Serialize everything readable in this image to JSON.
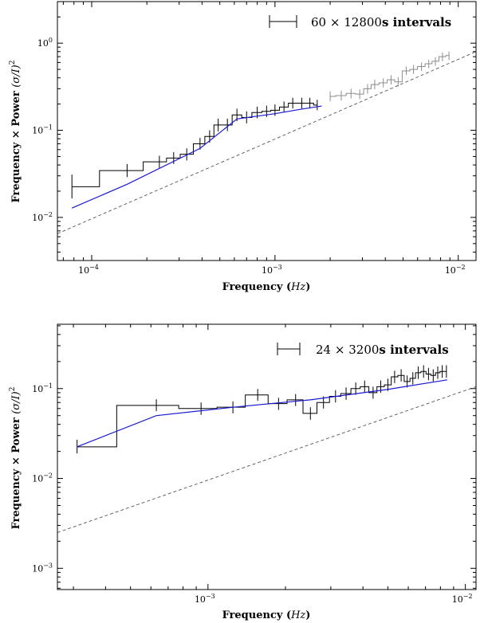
{
  "chart_data": [
    {
      "type": "line",
      "title": "",
      "xlabel": "Frequency (Hz)",
      "xlabel_prefix": "Frequency (",
      "xlabel_var": "Hz",
      "xlabel_suffix": ")",
      "ylabel": "Frequency × Power (σ/I)²",
      "ylabel_prefix": "Frequency × Power ",
      "ylabel_math": "(σ/I)",
      "ylabel_sup": "2",
      "xscale": "log",
      "yscale": "log",
      "xlim": [
        6.5e-05,
        0.0125
      ],
      "ylim": [
        0.0032,
        3.0
      ],
      "x_tick_labels": [
        {
          "base": "10",
          "exp": "−4",
          "value": 0.0001
        },
        {
          "base": "10",
          "exp": "−3",
          "value": 0.001
        },
        {
          "base": "10",
          "exp": "−2",
          "value": 0.01
        }
      ],
      "y_tick_labels": [
        {
          "base": "10",
          "exp": "−2",
          "value": 0.01
        },
        {
          "base": "10",
          "exp": "−1",
          "value": 0.1
        },
        {
          "base": "10",
          "exp": "0",
          "value": 1
        }
      ],
      "legend": {
        "position": "top-right",
        "count": "60",
        "times": "×",
        "length": "12800",
        "unit_suffix": "s intervals"
      },
      "series": [
        {
          "role": "data-step-black",
          "color": "#000000",
          "x": [
            7.8e-05,
            0.000156,
            0.000234,
            0.00028,
            0.00033,
            0.00039,
            0.00044,
            0.00049,
            0.00055,
            0.00062,
            0.0007,
            0.0008,
            0.0009,
            0.001,
            0.00112,
            0.00125,
            0.0014,
            0.00155,
            0.0017
          ],
          "y": [
            0.0225,
            0.0345,
            0.0435,
            0.048,
            0.053,
            0.07,
            0.085,
            0.115,
            0.115,
            0.15,
            0.14,
            0.16,
            0.165,
            0.17,
            0.185,
            0.205,
            0.205,
            0.205,
            0.195
          ],
          "yerr_lo": [
            0.0165,
            0.029,
            0.037,
            0.041,
            0.045,
            0.06,
            0.072,
            0.097,
            0.098,
            0.127,
            0.12,
            0.137,
            0.142,
            0.146,
            0.16,
            0.178,
            0.178,
            0.178,
            0.17
          ],
          "yerr_hi": [
            0.031,
            0.041,
            0.051,
            0.056,
            0.062,
            0.082,
            0.1,
            0.136,
            0.136,
            0.177,
            0.165,
            0.187,
            0.192,
            0.198,
            0.214,
            0.236,
            0.236,
            0.236,
            0.224
          ]
        },
        {
          "role": "data-step-grey",
          "color": "#8c8c8c",
          "x": [
            0.002,
            0.0023,
            0.0026,
            0.0029,
            0.0032,
            0.0035,
            0.0039,
            0.0043,
            0.0047,
            0.0052,
            0.0057,
            0.0063,
            0.0069,
            0.0075,
            0.0082,
            0.0089
          ],
          "y": [
            0.245,
            0.25,
            0.265,
            0.26,
            0.3,
            0.335,
            0.35,
            0.38,
            0.36,
            0.48,
            0.5,
            0.54,
            0.58,
            0.62,
            0.7,
            0.72
          ],
          "yerr_lo": [
            0.215,
            0.22,
            0.232,
            0.228,
            0.262,
            0.295,
            0.31,
            0.335,
            0.318,
            0.43,
            0.445,
            0.48,
            0.515,
            0.55,
            0.62,
            0.64
          ],
          "yerr_hi": [
            0.28,
            0.285,
            0.3,
            0.295,
            0.34,
            0.38,
            0.395,
            0.43,
            0.405,
            0.54,
            0.56,
            0.6,
            0.645,
            0.69,
            0.78,
            0.8
          ]
        },
        {
          "role": "model-blue",
          "color": "#1a1ad0",
          "x": [
            7.8e-05,
            0.000156,
            0.00039,
            0.00062,
            0.001,
            0.0014,
            0.0018
          ],
          "y": [
            0.0128,
            0.024,
            0.062,
            0.135,
            0.155,
            0.175,
            0.19
          ]
        },
        {
          "role": "reference-dashed",
          "color": "#555555",
          "x": [
            6.5e-05,
            0.0125
          ],
          "y": [
            0.0065,
            0.8
          ]
        }
      ]
    },
    {
      "type": "line",
      "title": "",
      "xlabel": "Frequency (Hz)",
      "xlabel_prefix": "Frequency (",
      "xlabel_var": "Hz",
      "xlabel_suffix": ")",
      "ylabel": "Frequency × Power (σ/I)²",
      "ylabel_prefix": "Frequency × Power ",
      "ylabel_math": "(σ/I)",
      "ylabel_sup": "2",
      "xscale": "log",
      "yscale": "log",
      "xlim": [
        0.00026,
        0.011
      ],
      "ylim": [
        0.00058,
        0.52
      ],
      "x_tick_labels": [
        {
          "base": "10",
          "exp": "−3",
          "value": 0.001
        },
        {
          "base": "10",
          "exp": "−2",
          "value": 0.01
        }
      ],
      "y_tick_labels": [
        {
          "base": "10",
          "exp": "−3",
          "value": 0.001
        },
        {
          "base": "10",
          "exp": "−2",
          "value": 0.01
        },
        {
          "base": "10",
          "exp": "−1",
          "value": 0.1
        }
      ],
      "legend": {
        "position": "top-right",
        "count": "24",
        "times": "×",
        "length": "3200",
        "unit_suffix": "s intervals"
      },
      "series": [
        {
          "role": "data-step-black",
          "color": "#000000",
          "x": [
            0.00031,
            0.00063,
            0.00094,
            0.00125,
            0.00156,
            0.00188,
            0.00219,
            0.0025,
            0.00281,
            0.00313,
            0.00344,
            0.00375,
            0.00406,
            0.00438,
            0.00469,
            0.005,
            0.00531,
            0.00563,
            0.00594,
            0.00625,
            0.00656,
            0.00688,
            0.00719,
            0.0075,
            0.00781,
            0.00813,
            0.00844
          ],
          "y": [
            0.0225,
            0.065,
            0.06,
            0.062,
            0.085,
            0.068,
            0.075,
            0.053,
            0.07,
            0.082,
            0.088,
            0.1,
            0.105,
            0.09,
            0.105,
            0.11,
            0.135,
            0.14,
            0.12,
            0.13,
            0.15,
            0.155,
            0.145,
            0.14,
            0.15,
            0.155,
            0.155
          ],
          "yerr_lo": [
            0.019,
            0.056,
            0.051,
            0.053,
            0.073,
            0.058,
            0.064,
            0.045,
            0.06,
            0.07,
            0.075,
            0.085,
            0.09,
            0.077,
            0.09,
            0.094,
            0.115,
            0.12,
            0.103,
            0.111,
            0.128,
            0.132,
            0.124,
            0.12,
            0.128,
            0.132,
            0.132
          ],
          "yerr_hi": [
            0.027,
            0.076,
            0.07,
            0.072,
            0.099,
            0.079,
            0.087,
            0.062,
            0.082,
            0.096,
            0.103,
            0.117,
            0.123,
            0.105,
            0.123,
            0.129,
            0.158,
            0.164,
            0.14,
            0.152,
            0.176,
            0.182,
            0.17,
            0.164,
            0.176,
            0.182,
            0.182
          ]
        },
        {
          "role": "model-blue",
          "color": "#1a1ad0",
          "x": [
            0.00031,
            0.00063,
            0.00125,
            0.0025,
            0.005,
            0.0085
          ],
          "y": [
            0.0225,
            0.05,
            0.062,
            0.075,
            0.098,
            0.125
          ]
        },
        {
          "role": "reference-dashed",
          "color": "#555555",
          "x": [
            0.00026,
            0.011
          ],
          "y": [
            0.0025,
            0.105
          ]
        }
      ]
    }
  ]
}
